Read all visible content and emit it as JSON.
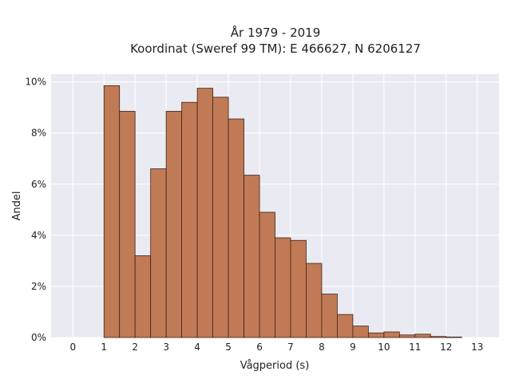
{
  "chart_data": {
    "type": "bar",
    "title": "År 1979 - 2019",
    "subtitle": "Koordinat (Sweref 99 TM): E 466627, N 6206127",
    "xlabel": "Vågperiod (s)",
    "ylabel": "Andel",
    "xlim": [
      -0.7,
      13.7
    ],
    "ylim": [
      0,
      10.3
    ],
    "x_ticks": [
      "0",
      "1",
      "2",
      "3",
      "4",
      "5",
      "6",
      "7",
      "8",
      "9",
      "10",
      "11",
      "12",
      "13"
    ],
    "y_ticks": [
      "0%",
      "2%",
      "4%",
      "6%",
      "8%",
      "10%"
    ],
    "bin_width": 0.5,
    "bins": [
      {
        "x": 1.0,
        "value": 9.85
      },
      {
        "x": 1.5,
        "value": 8.85
      },
      {
        "x": 2.0,
        "value": 3.2
      },
      {
        "x": 2.5,
        "value": 6.6
      },
      {
        "x": 3.0,
        "value": 8.85
      },
      {
        "x": 3.5,
        "value": 9.2
      },
      {
        "x": 4.0,
        "value": 9.75
      },
      {
        "x": 4.5,
        "value": 9.4
      },
      {
        "x": 5.0,
        "value": 8.55
      },
      {
        "x": 5.5,
        "value": 6.35
      },
      {
        "x": 6.0,
        "value": 4.9
      },
      {
        "x": 6.5,
        "value": 3.9
      },
      {
        "x": 7.0,
        "value": 3.8
      },
      {
        "x": 7.5,
        "value": 2.9
      },
      {
        "x": 8.0,
        "value": 1.7
      },
      {
        "x": 8.5,
        "value": 0.9
      },
      {
        "x": 9.0,
        "value": 0.45
      },
      {
        "x": 9.5,
        "value": 0.18
      },
      {
        "x": 10.0,
        "value": 0.22
      },
      {
        "x": 10.5,
        "value": 0.1
      },
      {
        "x": 11.0,
        "value": 0.13
      },
      {
        "x": 11.5,
        "value": 0.04
      },
      {
        "x": 12.0,
        "value": 0.02
      }
    ],
    "grid": true,
    "colors": {
      "bar_fill": "#c07a55",
      "bar_edge": "#3d2418",
      "plot_background": "#eaeaf2",
      "grid": "#ffffff"
    }
  }
}
